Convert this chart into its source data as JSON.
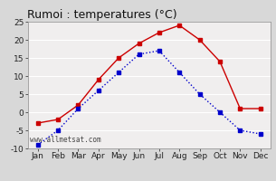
{
  "months": [
    "Jan",
    "Feb",
    "Mar",
    "Apr",
    "May",
    "Jun",
    "Jul",
    "Aug",
    "Sep",
    "Oct",
    "Nov",
    "Dec"
  ],
  "red_line": [
    -3,
    -2,
    2,
    9,
    15,
    19,
    22,
    24,
    20,
    14,
    1,
    1
  ],
  "blue_line": [
    -9,
    -5,
    1,
    6,
    11,
    16,
    17,
    11,
    5,
    0,
    -5,
    -6
  ],
  "red_color": "#cc0000",
  "blue_color": "#0000cc",
  "title": "Rumoi : temperatures (°C)",
  "ylim": [
    -10,
    25
  ],
  "yticks": [
    -10,
    -5,
    0,
    5,
    10,
    15,
    20,
    25
  ],
  "bg_color": "#d8d8d8",
  "plot_bg": "#f0eeee",
  "watermark": "www.allmetsat.com",
  "title_fontsize": 9,
  "axis_fontsize": 6.5,
  "watermark_fontsize": 5.5
}
